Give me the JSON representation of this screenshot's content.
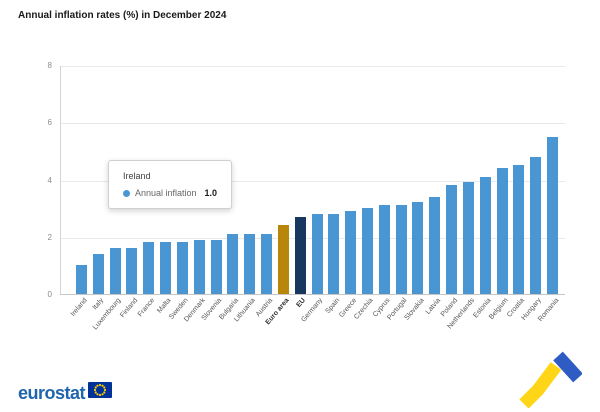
{
  "title": "Annual inflation rates (%) in December 2024",
  "tooltip": {
    "country": "Ireland",
    "series_label": "Annual inflation",
    "value": "1.0"
  },
  "footer": {
    "brand": "eurostat"
  },
  "colors": {
    "bar": "#4a96d2",
    "bar_euro_area": "#b8860b",
    "bar_eu": "#17375e",
    "marker_dot": "#4a96d2",
    "brand_blue": "#2066ad",
    "flag_blue": "#003399",
    "flag_stars": "#ffcc00",
    "ribbon_yellow": "#ffd617",
    "ribbon_blue": "#2f5bc4"
  },
  "chart_data": {
    "type": "bar",
    "title": "Annual inflation rates (%) in December 2024",
    "xlabel": "",
    "ylabel": "",
    "ylim": [
      0,
      8
    ],
    "yticks": [
      0,
      2,
      4,
      6,
      8
    ],
    "grid": true,
    "legend_position": "none",
    "categories": [
      "Ireland",
      "Italy",
      "Luxembourg",
      "Finland",
      "France",
      "Malta",
      "Sweden",
      "Denmark",
      "Slovenia",
      "Bulgaria",
      "Lithuania",
      "Austria",
      "Euro area",
      "EU",
      "Germany",
      "Spain",
      "Greece",
      "Czechia",
      "Cyprus",
      "Portugal",
      "Slovakia",
      "Latvia",
      "Poland",
      "Netherlands",
      "Estonia",
      "Belgium",
      "Croatia",
      "Hungary",
      "Romania"
    ],
    "values": [
      1.0,
      1.4,
      1.6,
      1.6,
      1.8,
      1.8,
      1.8,
      1.9,
      1.9,
      2.1,
      2.1,
      2.1,
      2.4,
      2.7,
      2.8,
      2.8,
      2.9,
      3.0,
      3.1,
      3.1,
      3.2,
      3.4,
      3.8,
      3.9,
      4.1,
      4.4,
      4.5,
      4.8,
      5.5
    ],
    "euro_area_index": 12,
    "eu_index": 13
  }
}
